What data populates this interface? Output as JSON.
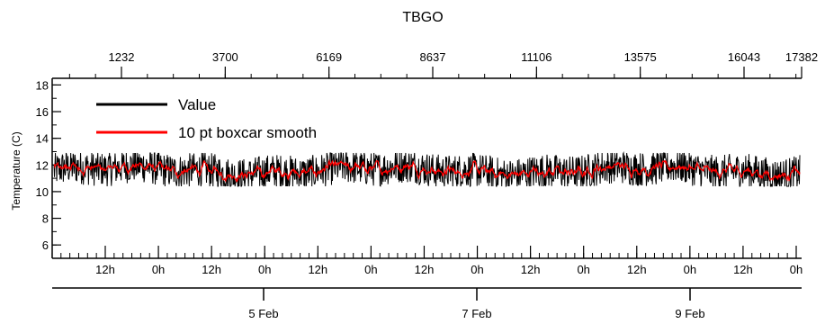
{
  "chart_data": {
    "type": "line",
    "title": "TBGO",
    "ylabel": "Temperature (C)",
    "xlabel": "",
    "ylim": [
      5,
      18.5
    ],
    "y_ticks": [
      6,
      8,
      10,
      12,
      14,
      16,
      18
    ],
    "top_axis": {
      "label": "",
      "ticks": [
        "1232",
        "3700",
        "6169",
        "8637",
        "11106",
        "13575",
        "16043",
        "17382"
      ]
    },
    "bottom_axis_hours": {
      "ticks": [
        "12h",
        "0h",
        "12h",
        "0h",
        "12h",
        "0h",
        "12h",
        "0h",
        "12h",
        "0h",
        "12h",
        "0h",
        "12h",
        "0h"
      ]
    },
    "bottom_axis_dates": {
      "ticks": [
        "5 Feb",
        "7 Feb",
        "9 Feb"
      ]
    },
    "legend_position": "top-left",
    "series": [
      {
        "name": "Value",
        "color": "#000000",
        "summary": {
          "center": 11.6,
          "min": 10.4,
          "max": 12.9
        }
      },
      {
        "name": "10 pt boxcar smooth",
        "color": "#ff0000",
        "summary": {
          "center": 11.6,
          "min": 10.8,
          "max": 12.3
        }
      }
    ]
  }
}
